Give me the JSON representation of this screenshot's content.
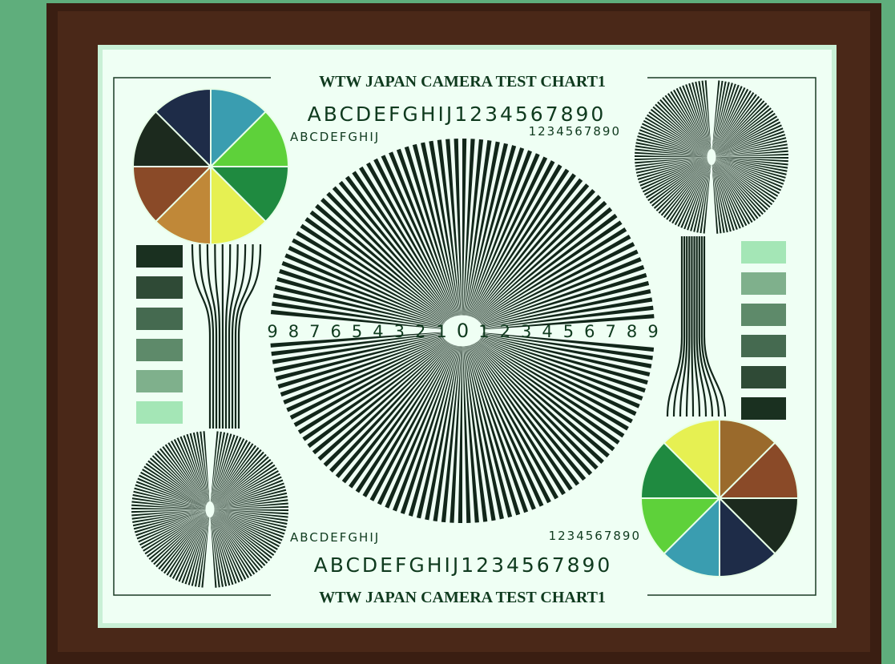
{
  "chart": {
    "title_top": "WTW JAPAN CAMERA TEST CHART1",
    "title_bottom": "WTW JAPAN CAMERA TEST CHART1",
    "top_large": "ABCDEFGHIJ1234567890",
    "top_small_letters": "ABCDEFGHIJ",
    "top_small_digits": "1234567890",
    "bottom_small_letters": "ABCDEFGHIJ",
    "bottom_small_digits": "1234567890",
    "bottom_large": "ABCDEFGHIJ1234567890",
    "center_scale": [
      "9",
      "8",
      "7",
      "6",
      "5",
      "4",
      "3",
      "2",
      "1",
      "0",
      "1",
      "2",
      "3",
      "4",
      "5",
      "6",
      "7",
      "8",
      "9"
    ]
  }
}
